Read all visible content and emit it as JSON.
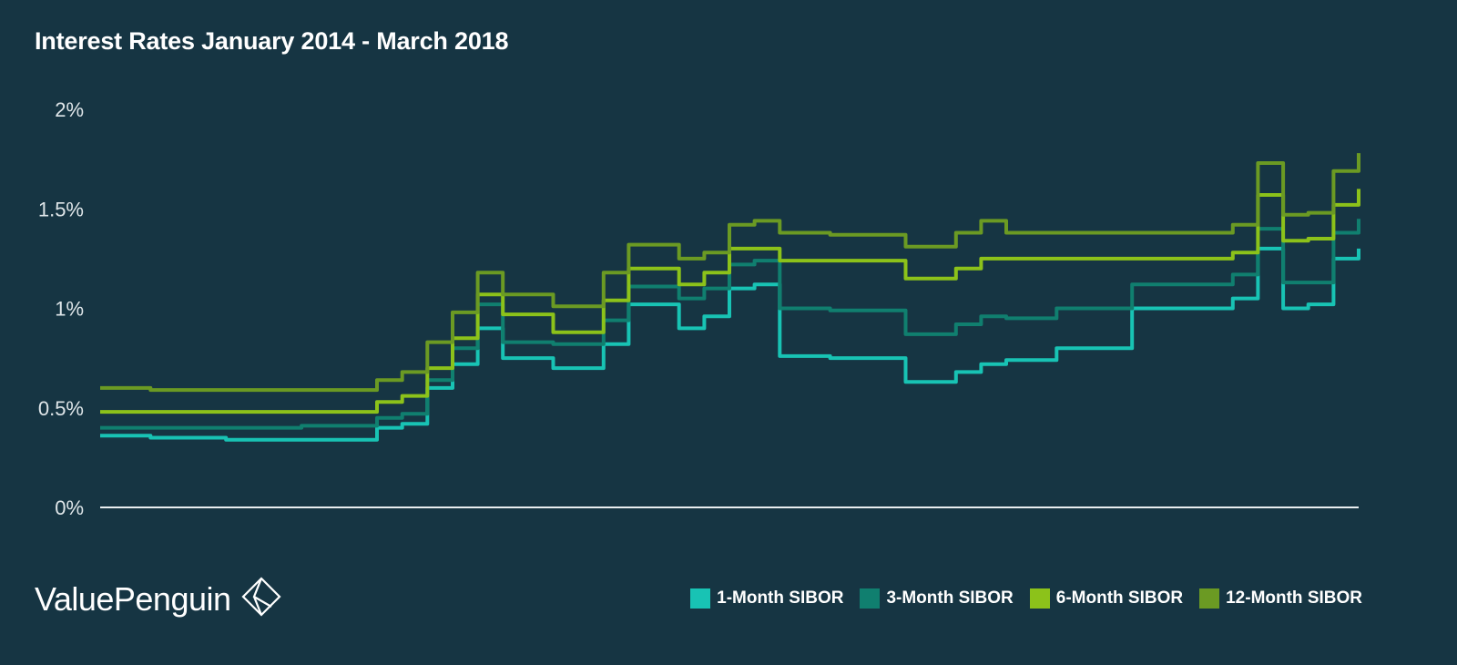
{
  "title": "Interest Rates January 2014 - March 2018",
  "brand": {
    "name": "ValuePenguin",
    "logo_icon": "diamond-arrow-logo-icon"
  },
  "legend": [
    {
      "label": "1-Month SIBOR",
      "color": "#18c3b4"
    },
    {
      "label": "3-Month SIBOR",
      "color": "#107f6f"
    },
    {
      "label": "6-Month SIBOR",
      "color": "#8cc21a"
    },
    {
      "label": "12-Month SIBOR",
      "color": "#6b9a23"
    }
  ],
  "chart_data": {
    "type": "line",
    "title": "Interest Rates January 2014 - March 2018",
    "xlabel": "",
    "ylabel": "",
    "x_range": [
      "Jan 2014",
      "Mar 2018"
    ],
    "ylim": [
      0,
      2
    ],
    "yticks": [
      {
        "value": 0,
        "label": "0%"
      },
      {
        "value": 0.5,
        "label": "0.5%"
      },
      {
        "value": 1,
        "label": "1%"
      },
      {
        "value": 1.5,
        "label": "1.5%"
      },
      {
        "value": 2,
        "label": "2%"
      }
    ],
    "grid": false,
    "legend_position": "bottom-right",
    "x": [
      "2014-01",
      "2014-03",
      "2014-06",
      "2014-09",
      "2014-12",
      "2015-01",
      "2015-02",
      "2015-03",
      "2015-04",
      "2015-05",
      "2015-07",
      "2015-09",
      "2015-10",
      "2015-12",
      "2016-01",
      "2016-02",
      "2016-03",
      "2016-04",
      "2016-06",
      "2016-09",
      "2016-10",
      "2016-11",
      "2016-12",
      "2017-01",
      "2017-03",
      "2017-06",
      "2017-09",
      "2017-10",
      "2017-11",
      "2017-12",
      "2018-01",
      "2018-02",
      "2018-03"
    ],
    "series": [
      {
        "name": "1-Month SIBOR",
        "color": "#18c3b4",
        "values": [
          0.36,
          0.35,
          0.34,
          0.34,
          0.4,
          0.42,
          0.6,
          0.72,
          0.9,
          0.75,
          0.7,
          0.82,
          1.02,
          0.9,
          0.96,
          1.1,
          1.12,
          0.76,
          0.75,
          0.63,
          0.63,
          0.68,
          0.72,
          0.74,
          0.8,
          1.0,
          1.0,
          1.05,
          1.3,
          1.0,
          1.02,
          1.25,
          1.3
        ]
      },
      {
        "name": "3-Month SIBOR",
        "color": "#107f6f",
        "values": [
          0.4,
          0.4,
          0.4,
          0.41,
          0.45,
          0.47,
          0.64,
          0.8,
          1.02,
          0.83,
          0.82,
          0.94,
          1.11,
          1.05,
          1.1,
          1.22,
          1.24,
          1.0,
          0.99,
          0.87,
          0.87,
          0.92,
          0.96,
          0.95,
          1.0,
          1.12,
          1.12,
          1.17,
          1.4,
          1.13,
          1.13,
          1.38,
          1.45
        ]
      },
      {
        "name": "6-Month SIBOR",
        "color": "#8cc21a",
        "values": [
          0.48,
          0.48,
          0.48,
          0.48,
          0.53,
          0.56,
          0.7,
          0.85,
          1.07,
          0.97,
          0.88,
          1.04,
          1.2,
          1.12,
          1.18,
          1.3,
          1.3,
          1.24,
          1.24,
          1.15,
          1.15,
          1.2,
          1.25,
          1.25,
          1.25,
          1.25,
          1.25,
          1.28,
          1.57,
          1.34,
          1.35,
          1.52,
          1.6
        ]
      },
      {
        "name": "12-Month SIBOR",
        "color": "#6b9a23",
        "values": [
          0.6,
          0.59,
          0.59,
          0.59,
          0.64,
          0.68,
          0.83,
          0.98,
          1.18,
          1.07,
          1.01,
          1.18,
          1.32,
          1.25,
          1.28,
          1.42,
          1.44,
          1.38,
          1.37,
          1.31,
          1.31,
          1.38,
          1.44,
          1.38,
          1.38,
          1.38,
          1.38,
          1.42,
          1.73,
          1.47,
          1.48,
          1.69,
          1.78
        ]
      }
    ]
  }
}
